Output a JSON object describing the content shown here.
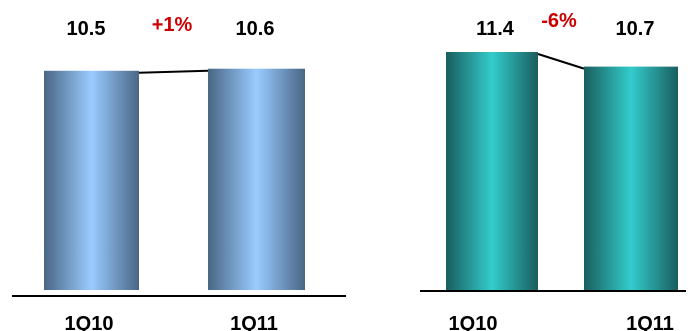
{
  "chart_data": [
    {
      "type": "bar",
      "categories": [
        "1Q10",
        "1Q11"
      ],
      "values": [
        10.5,
        10.6
      ],
      "value_labels": [
        "10.5",
        "10.6"
      ],
      "change_label": "+1%",
      "ylim": [
        0,
        11.4
      ],
      "colors": {
        "bar_light": "#99ccff",
        "bar_dark": "#4a6685",
        "change": "#cc0000",
        "axis": "#000000"
      }
    },
    {
      "type": "bar",
      "categories": [
        "1Q10",
        "1Q11"
      ],
      "values": [
        11.4,
        10.7
      ],
      "value_labels": [
        "11.4",
        "10.7"
      ],
      "change_label": "-6%",
      "ylim": [
        0,
        11.4
      ],
      "colors": {
        "bar_light": "#33cccc",
        "bar_dark": "#1a5e5e",
        "change": "#cc0000",
        "axis": "#000000"
      }
    }
  ]
}
